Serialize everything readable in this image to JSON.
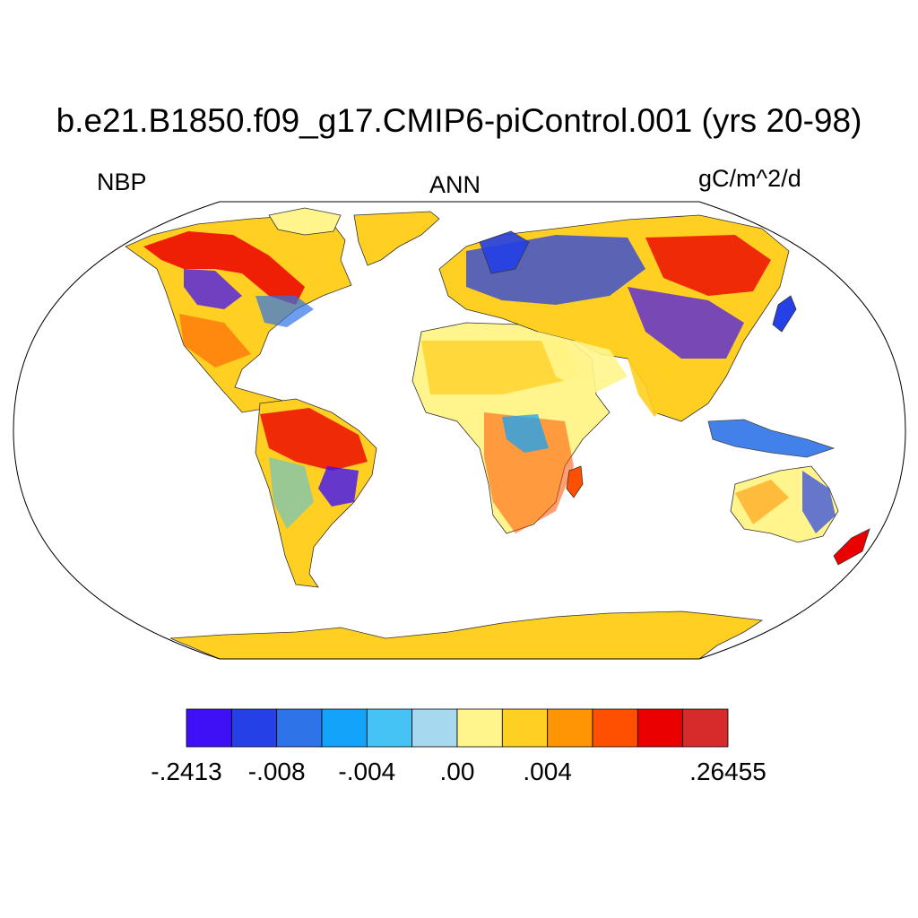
{
  "title": "b.e21.B1850.f09_g17.CMIP6-piControl.001 (yrs 20-98)",
  "left_label": "NBP",
  "center_label": "ANN",
  "right_label": "gC/m^2/d",
  "colorbar": {
    "colors": [
      "#3F10F5",
      "#2440E6",
      "#2E73E8",
      "#14A3FA",
      "#45C3F5",
      "#A6D9F0",
      "#FFF58C",
      "#FFCF21",
      "#FF9405",
      "#FF4F00",
      "#EB0000",
      "#D62B2B"
    ],
    "labels": [
      {
        "text": "-.2413",
        "boundary": 0
      },
      {
        "text": "-.008",
        "boundary": 2
      },
      {
        "text": "-.004",
        "boundary": 4
      },
      {
        "text": ".00",
        "boundary": 6
      },
      {
        "text": ".004",
        "boundary": 8
      },
      {
        "text": ".26455",
        "boundary": 12
      }
    ]
  },
  "map": {
    "projection": "Robinson",
    "ocean_color": "#ffffff",
    "antarctica_color": "#FFCF21"
  }
}
